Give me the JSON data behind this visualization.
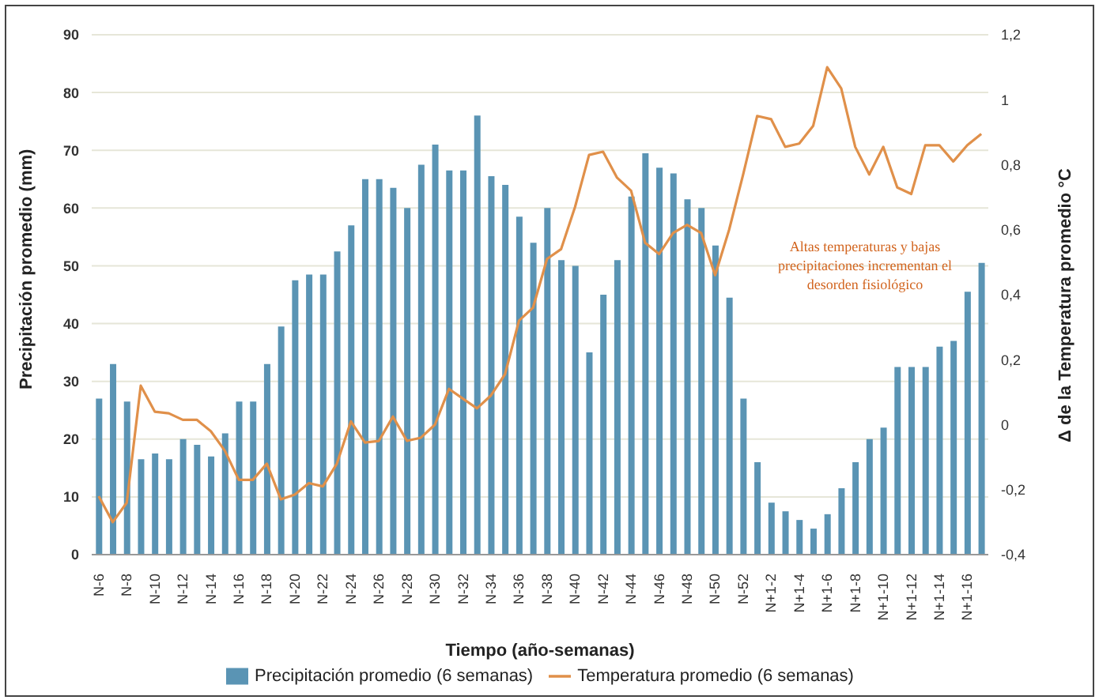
{
  "chart_data": {
    "type": "bar",
    "xlabel": "Tiempo (año-semanas)",
    "ylabel": "Precipitación promedio (mm)",
    "y2label": "Δ de la Temperatura promedio °C",
    "categories": [
      "N-6",
      null,
      "N-8",
      null,
      "N-10",
      null,
      "N-12",
      null,
      "N-14",
      null,
      "N-16",
      null,
      "N-18",
      null,
      "N-20",
      null,
      "N-22",
      null,
      "N-24",
      null,
      "N-26",
      null,
      "N-28",
      null,
      "N-30",
      null,
      "N-32",
      null,
      "N-34",
      null,
      "N-36",
      null,
      "N-38",
      null,
      "N-40",
      null,
      "N-42",
      null,
      "N-44",
      null,
      "N-46",
      null,
      "N-48",
      null,
      "N-50",
      null,
      "N-52",
      null,
      "N+1-2",
      null,
      "N+1-4",
      null,
      "N+1-6",
      null,
      "N+1-8",
      null,
      "N+1-10",
      null,
      "N+1-12",
      null,
      "N+1-14",
      null,
      "N+1-16",
      null
    ],
    "series": [
      {
        "name": "Precipitación promedio  (6 semanas)",
        "color": "#5a94b4",
        "values": [
          27,
          33,
          26.5,
          16.5,
          17.5,
          16.5,
          20,
          19,
          17,
          21,
          26.5,
          26.5,
          33,
          39.5,
          47.5,
          48.5,
          48.5,
          52.5,
          57,
          65,
          65,
          63.5,
          60,
          67.5,
          71,
          66.5,
          66.5,
          76,
          65.5,
          64,
          58.5,
          54,
          60,
          51,
          50,
          35,
          45,
          51,
          62,
          69.5,
          67,
          66,
          61.5,
          60,
          53.5,
          44.5,
          27,
          16,
          9,
          7.5,
          6,
          4.5,
          7,
          11.5,
          16,
          20,
          22,
          32.5,
          32.5,
          32.5,
          36,
          37,
          45.5,
          50.5
        ]
      },
      {
        "name": "Temperatura promedio (6 semanas)",
        "type": "line",
        "axis": "y2",
        "color": "#e0904a",
        "values": [
          -0.22,
          -0.3,
          -0.24,
          0.12,
          0.04,
          0.035,
          0.015,
          0.015,
          -0.02,
          -0.08,
          -0.17,
          -0.17,
          -0.12,
          -0.23,
          -0.215,
          -0.18,
          -0.19,
          -0.12,
          0.01,
          -0.055,
          -0.05,
          0.025,
          -0.05,
          -0.04,
          0,
          0.11,
          0.08,
          0.05,
          0.09,
          0.155,
          0.32,
          0.36,
          0.51,
          0.54,
          0.67,
          0.83,
          0.84,
          0.76,
          0.72,
          0.56,
          0.525,
          0.59,
          0.615,
          0.59,
          0.46,
          0.6,
          0.77,
          0.95,
          0.94,
          0.855,
          0.865,
          0.92,
          1.1,
          1.035,
          0.855,
          0.77,
          0.855,
          0.73,
          0.71,
          0.86,
          0.86,
          0.81,
          0.86,
          0.895
        ]
      }
    ],
    "ylim": [
      0,
      90
    ],
    "yticks": [
      0,
      10,
      20,
      30,
      40,
      50,
      60,
      70,
      80,
      90
    ],
    "y2lim": [
      -0.4,
      1.2
    ],
    "y2ticks": [
      {
        "value": -0.4,
        "label": "-0,4"
      },
      {
        "value": -0.2,
        "label": "-0,2"
      },
      0,
      {
        "value": 0.2,
        "label": "0,2"
      },
      {
        "value": 0.4,
        "label": "0,4"
      },
      {
        "value": 0.6,
        "label": "0,6"
      },
      {
        "value": 0.8,
        "label": "0,8"
      },
      1,
      {
        "value": 1.2,
        "label": "1,2"
      }
    ],
    "grid": "y",
    "legend": "bottom",
    "marker": "none",
    "annotations": [
      "Altas temperaturas y bajas precipitaciones incrementan el desorden fisiológico"
    ]
  }
}
